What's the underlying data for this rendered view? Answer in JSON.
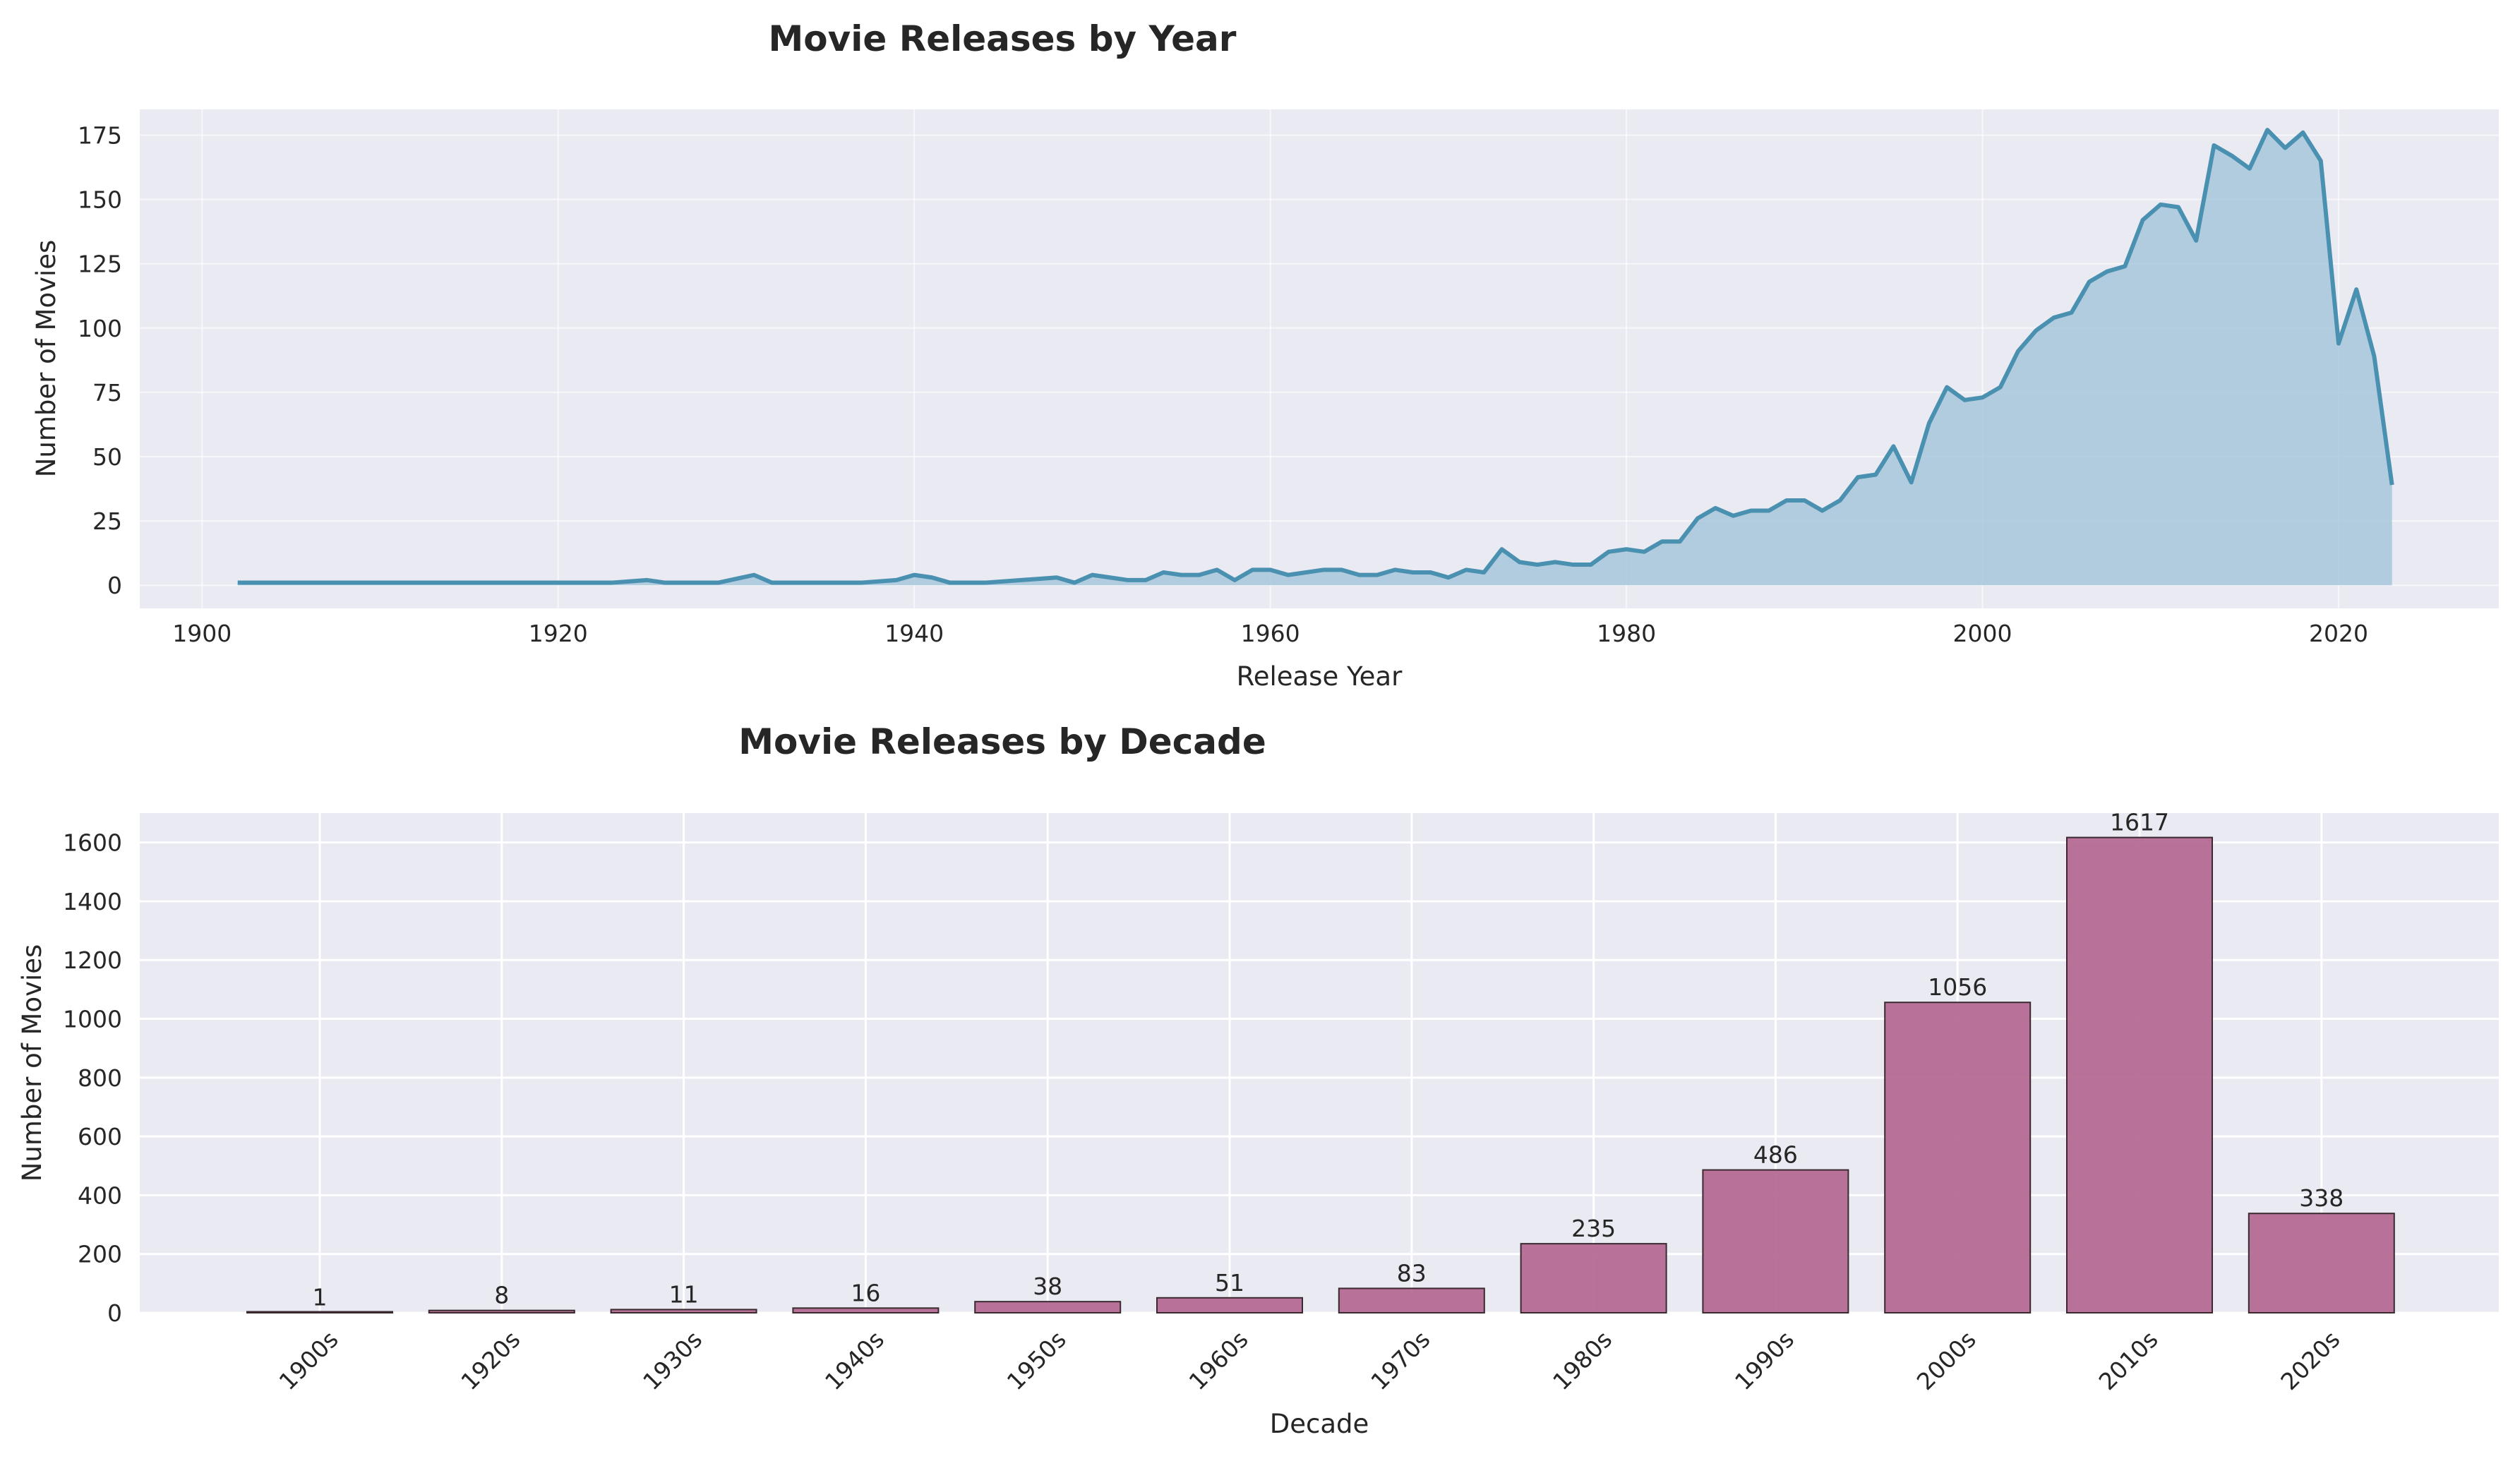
{
  "chart_data": [
    {
      "type": "area",
      "title": "Movie Releases by Year",
      "xlabel": "Release Year",
      "ylabel": "Number of Movies",
      "xlim": [
        1896.5,
        2029
      ],
      "ylim": [
        -9,
        185
      ],
      "xticks": [
        1900,
        1920,
        1940,
        1960,
        1980,
        2000,
        2020
      ],
      "yticks": [
        0,
        25,
        50,
        75,
        100,
        125,
        150,
        175
      ],
      "grid": true,
      "colors": {
        "line": "#4a90b0",
        "fill": "#a7c7db",
        "plot_bg": "#eaeaf2",
        "grid": "#ffffff"
      },
      "x": [
        1902,
        1903,
        1904,
        1905,
        1906,
        1907,
        1908,
        1909,
        1910,
        1911,
        1912,
        1913,
        1914,
        1915,
        1916,
        1917,
        1918,
        1919,
        1920,
        1921,
        1922,
        1923,
        1924,
        1925,
        1926,
        1927,
        1928,
        1929,
        1930,
        1931,
        1932,
        1933,
        1934,
        1935,
        1936,
        1937,
        1938,
        1939,
        1940,
        1941,
        1942,
        1943,
        1944,
        1945,
        1946,
        1947,
        1948,
        1949,
        1950,
        1951,
        1952,
        1953,
        1954,
        1955,
        1956,
        1957,
        1958,
        1959,
        1960,
        1961,
        1962,
        1963,
        1964,
        1965,
        1966,
        1967,
        1968,
        1969,
        1970,
        1971,
        1972,
        1973,
        1974,
        1975,
        1976,
        1977,
        1978,
        1979,
        1980,
        1981,
        1982,
        1983,
        1984,
        1985,
        1986,
        1987,
        1988,
        1989,
        1990,
        1991,
        1992,
        1993,
        1994,
        1995,
        1996,
        1997,
        1998,
        1999,
        2000,
        2001,
        2002,
        2003,
        2004,
        2005,
        2006,
        2007,
        2008,
        2009,
        2010,
        2011,
        2012,
        2013,
        2014,
        2015,
        2016,
        2017,
        2018,
        2019,
        2020,
        2021,
        2022,
        2023
      ],
      "y": [
        1,
        1,
        1,
        1,
        1,
        1,
        1,
        1,
        1,
        1,
        1,
        1,
        1,
        1,
        1,
        1,
        1,
        1,
        1,
        1,
        1,
        1,
        1.5,
        2,
        1,
        1,
        1,
        1,
        2.5,
        4,
        1,
        1,
        1,
        1,
        1,
        1,
        1.5,
        2,
        4,
        3,
        1,
        1,
        1,
        1.5,
        2,
        2.5,
        3,
        1,
        4,
        3,
        2,
        2,
        5,
        4,
        4,
        6,
        2,
        6,
        6,
        4,
        5,
        6,
        6,
        4,
        4,
        6,
        5,
        5,
        3,
        6,
        5,
        14,
        9,
        8,
        9,
        8,
        8,
        13,
        14,
        13,
        17,
        17,
        26,
        30,
        27,
        29,
        29,
        33,
        33,
        29,
        33,
        42,
        43,
        54,
        40,
        63,
        77,
        72,
        73,
        77,
        91,
        99,
        104,
        106,
        118,
        122,
        124,
        142,
        148,
        147,
        134,
        171,
        167,
        162,
        177,
        170,
        176,
        165,
        94,
        115,
        89,
        39
      ]
    },
    {
      "type": "bar",
      "title": "Movie Releases by Decade",
      "xlabel": "Decade",
      "ylabel": "Number of Movies",
      "ylim": [
        0,
        1700
      ],
      "yticks": [
        0,
        200,
        400,
        600,
        800,
        1000,
        1200,
        1400,
        1600
      ],
      "grid": true,
      "colors": {
        "bar": "#b56b93",
        "edge": "#3a2a30",
        "plot_bg": "#eaeaf2",
        "grid": "#ffffff"
      },
      "categories": [
        "1900s",
        "1920s",
        "1930s",
        "1940s",
        "1950s",
        "1960s",
        "1970s",
        "1980s",
        "1990s",
        "2000s",
        "2010s",
        "2020s"
      ],
      "values": [
        1,
        8,
        11,
        16,
        38,
        51,
        83,
        235,
        486,
        1056,
        1617,
        338
      ]
    }
  ]
}
